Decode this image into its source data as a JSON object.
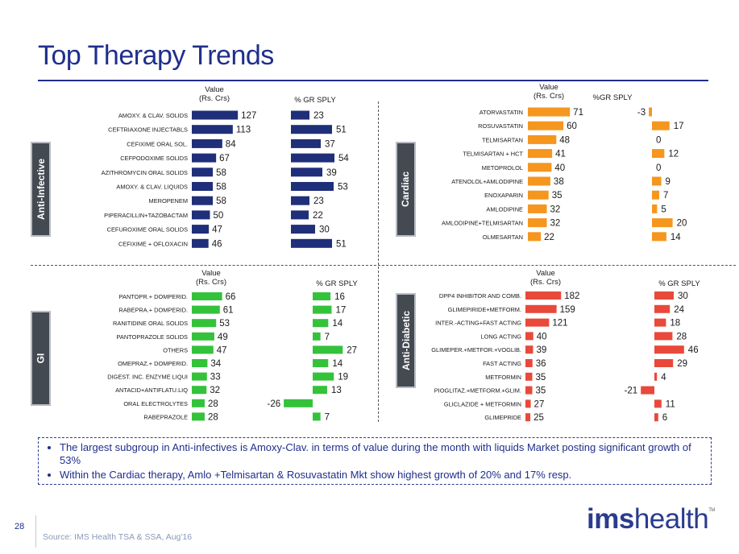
{
  "title": "Top Therapy Trends",
  "colors": {
    "anti_infective": "#1f2f7a",
    "cardiac": "#f5961e",
    "gi": "#34c23a",
    "anti_diabetic": "#e8493a"
  },
  "chart_data": [
    {
      "type": "bar",
      "panel": "Anti-Infective",
      "categories": [
        "AMOXY. & CLAV. SOLIDS",
        "CEFTRIAXONE INJECTABLS",
        "CEFIXIME ORAL SOL.",
        "CEFPODOXIME SOLIDS",
        "AZITHROMYCIN ORAL SOLIDS",
        "AMOXY. & CLAV. LIQUIDS",
        "MEROPENEM",
        "PIPERACILLIN+TAZOBACTAM",
        "CEFUROXIME ORAL SOLIDS",
        "CEFIXIME + OFLOXACIN"
      ],
      "series": [
        {
          "name": "Value\n(Rs. Crs)",
          "values": [
            127,
            113,
            84,
            67,
            58,
            58,
            58,
            50,
            47,
            46
          ]
        },
        {
          "name": "% GR SPLY",
          "values": [
            23,
            51,
            37,
            54,
            39,
            53,
            23,
            22,
            30,
            51
          ]
        }
      ]
    },
    {
      "type": "bar",
      "panel": "Cardiac",
      "categories": [
        "ATORVASTATIN",
        "ROSUVASTATIN",
        "TELMISARTAN",
        "TELMISARTAN + HCT",
        "METOPROLOL",
        "ATENOLOL+AMLODIPINE",
        "ENOXAPARIN",
        "AMLODIPINE",
        "AMLODIPINE+TELMISARTAN",
        "OLMESARTAN"
      ],
      "series": [
        {
          "name": "Value\n(Rs. Crs)",
          "values": [
            71,
            60,
            48,
            41,
            40,
            38,
            35,
            32,
            32,
            22
          ]
        },
        {
          "name": "%GR SPLY",
          "values": [
            -3,
            17,
            0,
            12,
            0,
            9,
            7,
            5,
            20,
            14
          ]
        }
      ]
    },
    {
      "type": "bar",
      "panel": "GI",
      "categories": [
        "PANTOPR.+ DOMPERID.",
        "RABEPRA.+ DOMPERID.",
        "RANITIDINE ORAL SOLIDS",
        "PANTOPRAZOLE SOLIDS",
        "OTHERS",
        "OMEPRAZ.+ DOMPERID.",
        "DIGEST. INC. ENZYME LIQUI",
        "ANTACID+ANTIFLATU.LIQ",
        "ORAL ELECTROLYTES",
        "RABEPRAZOLE"
      ],
      "series": [
        {
          "name": "Value\n(Rs. Crs)",
          "values": [
            66,
            61,
            53,
            49,
            47,
            34,
            33,
            32,
            28,
            28
          ]
        },
        {
          "name": "% GR SPLY",
          "values": [
            16,
            17,
            14,
            7,
            27,
            14,
            19,
            13,
            -26,
            7
          ]
        }
      ]
    },
    {
      "type": "bar",
      "panel": "Anti-Diabetic",
      "categories": [
        "DPP4 INHIBITOR AND COMB.",
        "GLIMEPIRIDE+METFORM.",
        "INTER.-ACTING+FAST ACTING",
        "LONG ACTING",
        "GLIMEPER.+METFOR.+VOGLIB.",
        "FAST ACTING",
        "METFORMIN",
        "PIOGLITAZ.+METFORM.+GLIM.",
        "GLICLAZIDE + METFORMIN",
        "GLIMEPRIDE"
      ],
      "series": [
        {
          "name": "Value\n(Rs. Crs)",
          "values": [
            182,
            159,
            121,
            40,
            39,
            36,
            35,
            35,
            27,
            25
          ]
        },
        {
          "name": "% GR SPLY",
          "values": [
            30,
            24,
            18,
            28,
            46,
            29,
            4,
            -21,
            11,
            6
          ]
        }
      ]
    }
  ],
  "summary": [
    "The largest subgroup in Anti-infectives is Amoxy-Clav. in terms of value during the month with liquids Market posting significant growth of 53%",
    "Within the Cardiac therapy, Amlo +Telmisartan & Rosuvastatin Mkt show highest growth of 20% and 17% resp."
  ],
  "footer": {
    "page_number": "28",
    "source": "Source: IMS Health TSA & SSA, Aug'16",
    "logo_part1": "ims",
    "logo_part2": "health",
    "logo_tm": "TM"
  }
}
